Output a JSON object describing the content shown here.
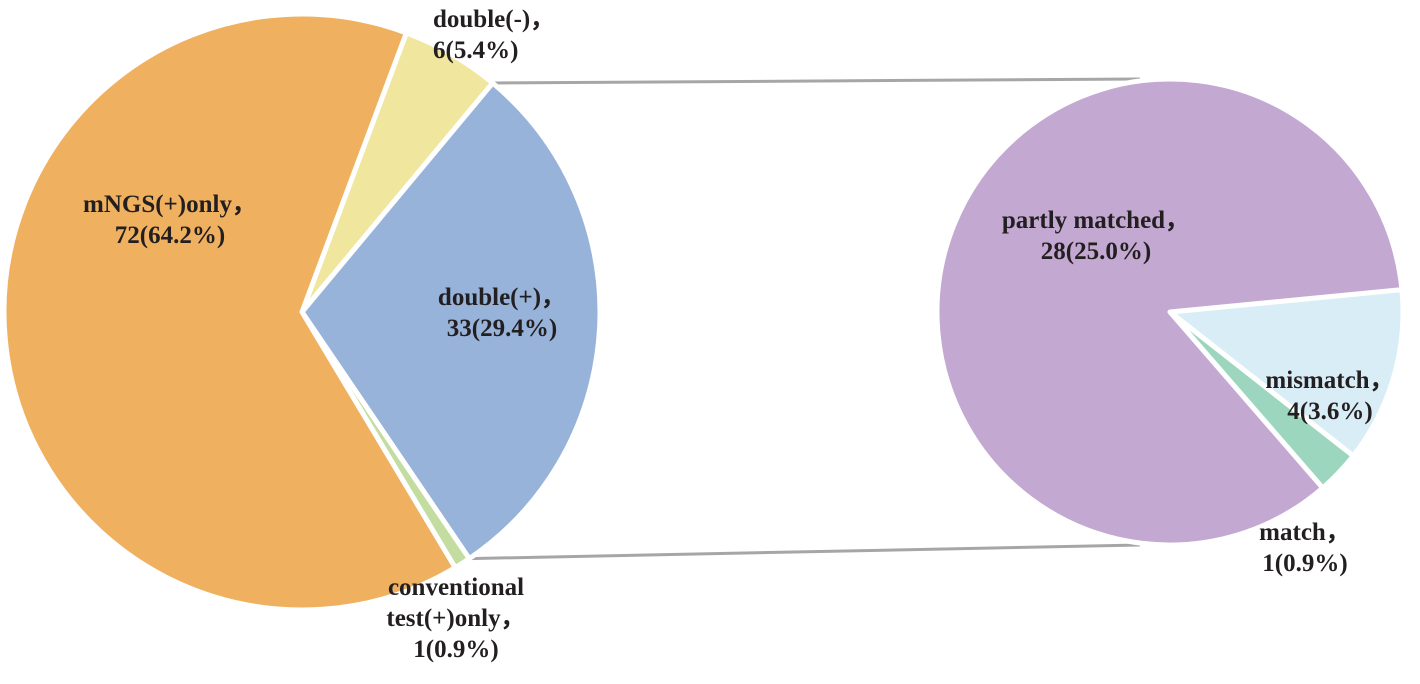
{
  "chart_data": [
    {
      "type": "pie",
      "title": "",
      "slices": [
        {
          "name": "double(-)",
          "value": 6,
          "percent": 5.4,
          "label_line1": "double(-)，",
          "label_line2": "6(5.4%)",
          "color": "#f0e69e"
        },
        {
          "name": "double(+)",
          "value": 33,
          "percent": 29.4,
          "label_line1": "double(+)，",
          "label_line2": "33(29.4%)",
          "color": "#97b3da"
        },
        {
          "name": "conventional test(+)only",
          "value": 1,
          "percent": 0.9,
          "label_line1": "conventional",
          "label_line2": "test(+)only，",
          "label_line3": "1(0.9%)",
          "color": "#c3dc9f"
        },
        {
          "name": "mNGS(+)only",
          "value": 72,
          "percent": 64.2,
          "label_line1": "mNGS(+)only，",
          "label_line2": "72(64.2%)",
          "color": "#efb15f"
        }
      ]
    },
    {
      "type": "pie",
      "title": "",
      "breakdown_of": "double(+)",
      "slices": [
        {
          "name": "mismatch",
          "value": 4,
          "percent": 3.6,
          "label_line1": "mismatch，",
          "label_line2": "4(3.6%)",
          "color": "#d9edf7"
        },
        {
          "name": "match",
          "value": 1,
          "percent": 0.9,
          "label_line1": "match，",
          "label_line2": "1(0.9%)",
          "color": "#9dd6bf"
        },
        {
          "name": "partly matched",
          "value": 28,
          "percent": 25.0,
          "label_line1": "partly matched，",
          "label_line2": "28(25.0%)",
          "color": "#c3a8d1"
        }
      ]
    }
  ]
}
